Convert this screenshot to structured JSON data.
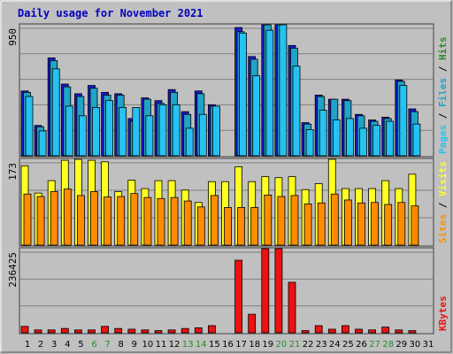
{
  "colors": {
    "background": "#c0c0c0",
    "panel": "#c0c0c0",
    "title": "#0000c0",
    "grid": "#808080",
    "hits": "#1a1acc",
    "files": "#1fa3c7",
    "pages": "#26c2f2",
    "visits": "#ffff22",
    "sites": "#ff8c00",
    "kbytes": "#ee1111",
    "weekend_day": "#2a8a2a",
    "weekday_day": "#000000",
    "label_slash": "#000000"
  },
  "chart_data": {
    "type": "bar",
    "title": "Daily usage for November 2021",
    "days": [
      "1",
      "2",
      "3",
      "4",
      "5",
      "6",
      "7",
      "8",
      "9",
      "10",
      "11",
      "12",
      "13",
      "14",
      "15",
      "16",
      "17",
      "18",
      "19",
      "20",
      "21",
      "22",
      "23",
      "24",
      "25",
      "26",
      "27",
      "28",
      "29",
      "30",
      "31"
    ],
    "weekend_days": [
      "6",
      "7",
      "13",
      "14",
      "20",
      "21",
      "27",
      "28"
    ],
    "panels": [
      {
        "name": "hits-files-pages",
        "scale_max": 950,
        "scale_label": "950",
        "labels": [
          {
            "text": "Hits",
            "color_key": "weekend_day"
          },
          {
            "text": "Files",
            "color_key": "files"
          },
          {
            "text": "Pages",
            "color_key": "pages"
          }
        ],
        "series": [
          {
            "name": "Hits",
            "color_key": "hits",
            "values": [
              470,
              220,
              710,
              520,
              450,
              510,
              460,
              450,
              270,
              420,
              400,
              480,
              320,
              470,
              370,
              0,
              930,
              720,
              1050,
              1050,
              800,
              240,
              440,
              410,
              410,
              300,
              260,
              280,
              550,
              340,
              0
            ]
          },
          {
            "name": "Files",
            "color_key": "files",
            "values": [
              460,
              210,
              690,
              500,
              430,
              490,
              440,
              440,
              250,
              410,
              380,
              460,
              300,
              450,
              360,
              0,
              900,
              700,
              980,
              1050,
              780,
              230,
              430,
              410,
              400,
              290,
              250,
              270,
              540,
              320,
              0
            ]
          },
          {
            "name": "Pages",
            "color_key": "pages",
            "values": [
              430,
              180,
              630,
              360,
              290,
              350,
              400,
              350,
              350,
              290,
              370,
              370,
              200,
              300,
              360,
              0,
              890,
              580,
              910,
              1000,
              650,
              190,
              330,
              260,
              270,
              200,
              220,
              250,
              510,
              230,
              0
            ]
          }
        ]
      },
      {
        "name": "visits-sites",
        "scale_max": 173,
        "scale_label": "173",
        "labels": [
          {
            "text": "Visits",
            "color_key": "visits"
          },
          {
            "text": "Sites",
            "color_key": "sites"
          }
        ],
        "series": [
          {
            "name": "Visits",
            "color_key": "visits",
            "values": [
              160,
              105,
              130,
              171,
              173,
              171,
              168,
              108,
              131,
              114,
              130,
              130,
              111,
              86,
              128,
              128,
              158,
              128,
              138,
              136,
              138,
              112,
              124,
              173,
              114,
              114,
              114,
              130,
              114,
              143,
              0
            ]
          },
          {
            "name": "Sites",
            "color_key": "sites",
            "values": [
              103,
              98,
              108,
              113,
              100,
              108,
              97,
              98,
              104,
              96,
              94,
              96,
              89,
              77,
              100,
              76,
              76,
              76,
              101,
              98,
              100,
              83,
              85,
              103,
              91,
              85,
              86,
              82,
              86,
              79,
              0
            ]
          }
        ]
      },
      {
        "name": "kbytes",
        "scale_max": 236425,
        "scale_label": "236425",
        "labels": [
          {
            "text": "KBytes",
            "color_key": "kbytes"
          }
        ],
        "series": [
          {
            "name": "KBytes",
            "color_key": "kbytes",
            "values": [
              18000,
              8000,
              8000,
              12000,
              8000,
              8000,
              18000,
              12000,
              10000,
              8000,
              6000,
              8000,
              12000,
              14000,
              20000,
              0,
              204000,
              52000,
              236425,
              236425,
              142000,
              6000,
              20000,
              10000,
              20000,
              10000,
              8000,
              16000,
              8000,
              6000,
              0
            ]
          }
        ]
      }
    ]
  }
}
